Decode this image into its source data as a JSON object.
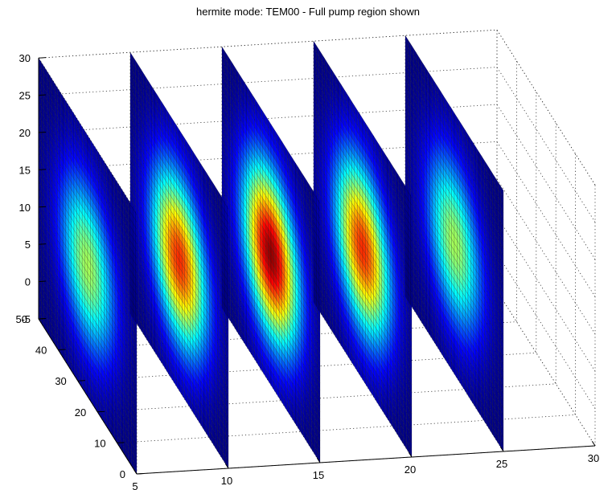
{
  "chart_data": {
    "type": "surface3d",
    "title": "hermite mode: TEM00 - Full pump region shown",
    "colormap": "jet",
    "grid": true,
    "box": "dotted",
    "x_axis": {
      "ticks": [
        "5",
        "10",
        "15",
        "20",
        "25",
        "30"
      ],
      "range": [
        5,
        30
      ]
    },
    "y_axis": {
      "ticks": [
        "0",
        "10",
        "20",
        "30",
        "40",
        "50"
      ],
      "range": [
        0,
        50
      ]
    },
    "z_axis": {
      "ticks": [
        "-5",
        "0",
        "5",
        "10",
        "15",
        "20",
        "25",
        "30"
      ],
      "range": [
        -5,
        30
      ]
    },
    "slices": [
      {
        "x": 5,
        "peak_intensity": 0.55
      },
      {
        "x": 10,
        "peak_intensity": 0.85
      },
      {
        "x": 15,
        "peak_intensity": 1.0
      },
      {
        "x": 20,
        "peak_intensity": 0.85
      },
      {
        "x": 25,
        "peak_intensity": 0.55
      }
    ]
  }
}
